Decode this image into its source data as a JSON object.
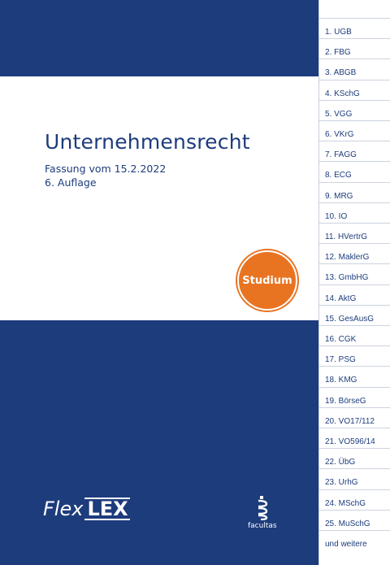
{
  "book": {
    "title": "Unternehmensrecht",
    "version_line": "Fassung vom 15.2.2022",
    "edition_line": "6. Auflage",
    "badge": "Studium",
    "brand_flex": "Flex",
    "brand_lex": "LEX",
    "publisher": "facultas"
  },
  "tabs": [
    "1.   UGB",
    "2.   FBG",
    "3.   ABGB",
    "4.   KSchG",
    "5.   VGG",
    "6.   VKrG",
    "7.   FAGG",
    "8.   ECG",
    "9.   MRG",
    "10. IO",
    "11. HVertrG",
    "12. MaklerG",
    "13. GmbHG",
    "14. AktG",
    "15. GesAusG",
    "16. CGK",
    "17. PSG",
    "18. KMG",
    "19. BörseG",
    "20. VO17/112",
    "21. VO596/14",
    "22. ÜbG",
    "23. UrhG",
    "24. MSchG",
    "25. MuSchG",
    "und weitere"
  ],
  "colors": {
    "navy": "#1d3c7c",
    "orange": "#e87422"
  }
}
